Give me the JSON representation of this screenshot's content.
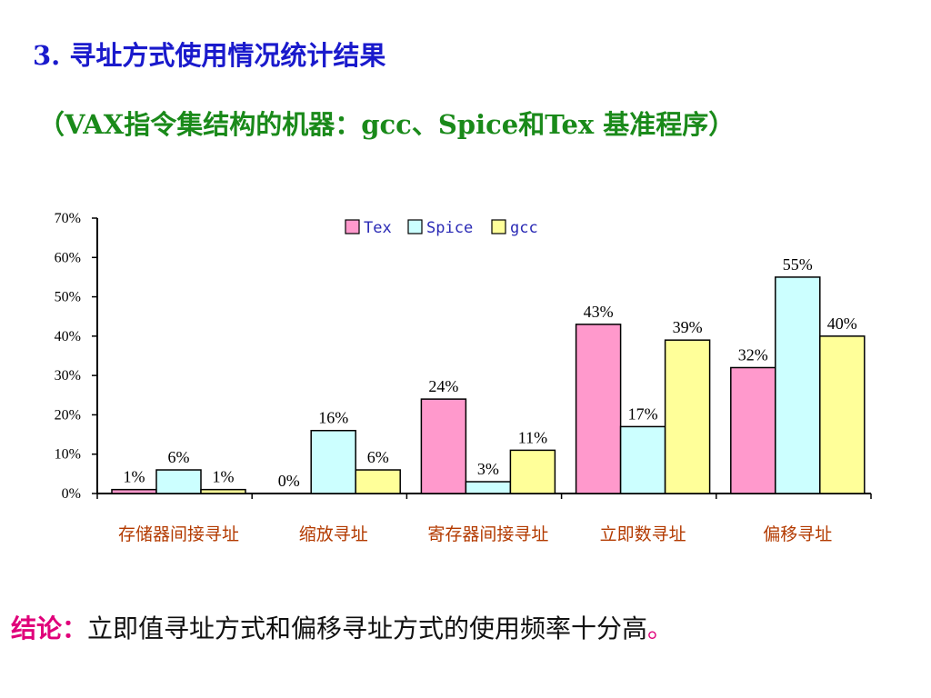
{
  "header": {
    "title": "3. 寻址方式使用情况统计结果",
    "subtitle": "（VAX指令集结构的机器：gcc、Spice和Tex 基准程序）"
  },
  "conclusion": {
    "label": "结论：",
    "text": "立即值寻址方式和偏移寻址方式的使用频率十分高",
    "end": "。"
  },
  "colors": {
    "title": "#1a1acc",
    "subtitle": "#1a8a1a",
    "category_label": "#b33a00",
    "conclusion_label": "#e0007a"
  },
  "chart_data": {
    "type": "bar",
    "categories": [
      "存储器间接寻址",
      "缩放寻址",
      "寄存器间接寻址",
      "立即数寻址",
      "偏移寻址"
    ],
    "series": [
      {
        "name": "Tex",
        "color": "#ff99cc",
        "values": [
          1,
          0,
          24,
          43,
          32
        ],
        "labels": [
          "1%",
          "0%",
          "24%",
          "43%",
          "32%"
        ]
      },
      {
        "name": "Spice",
        "color": "#ccffff",
        "values": [
          6,
          16,
          3,
          17,
          55
        ],
        "labels": [
          "6%",
          "16%",
          "3%",
          "17%",
          "55%"
        ]
      },
      {
        "name": "gcc",
        "color": "#ffff99",
        "values": [
          1,
          6,
          11,
          39,
          40
        ],
        "labels": [
          "1%",
          "6%",
          "11%",
          "39%",
          "40%"
        ]
      }
    ],
    "ylim": [
      0,
      70
    ],
    "yticks": [
      0,
      10,
      20,
      30,
      40,
      50,
      60,
      70
    ],
    "ytick_labels": [
      "0%",
      "10%",
      "20%",
      "30%",
      "40%",
      "50%",
      "60%",
      "70%"
    ],
    "legend_position": "top-center",
    "grid": false
  }
}
